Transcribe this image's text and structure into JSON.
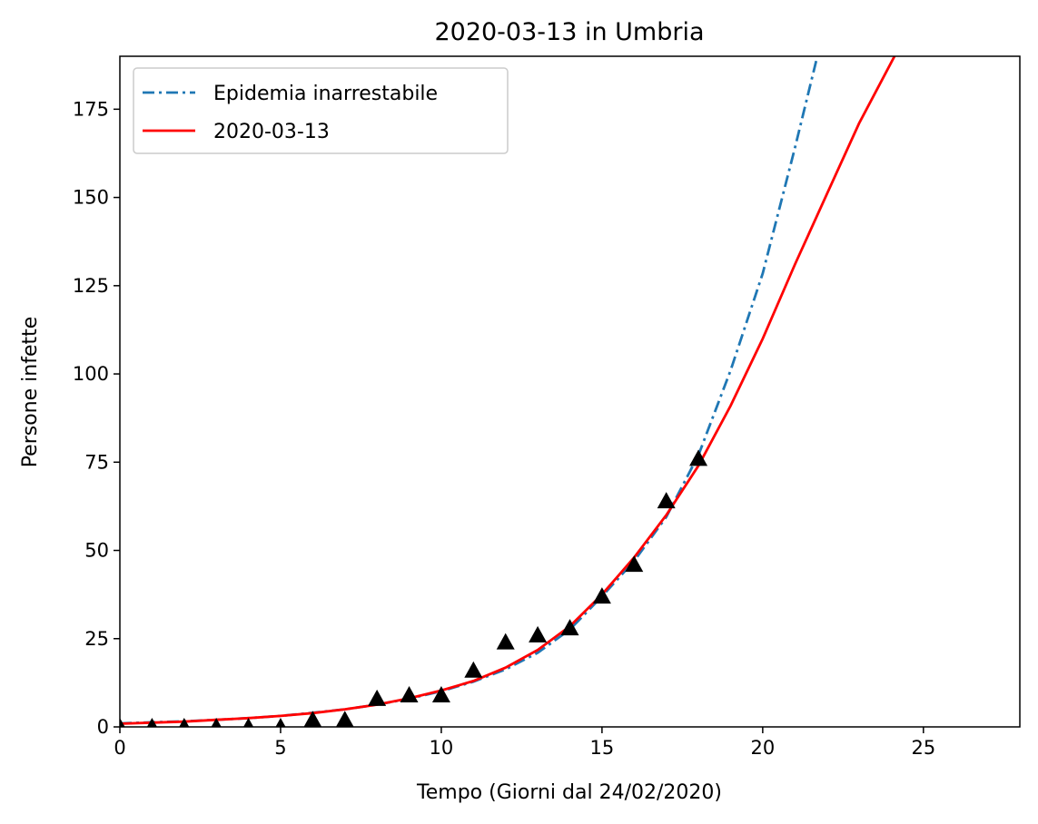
{
  "chart_data": {
    "type": "line",
    "title": "2020-03-13 in Umbria",
    "xlabel": "Tempo (Giorni dal 24/02/2020)",
    "ylabel": "Persone infette",
    "xlim": [
      0,
      28
    ],
    "ylim": [
      0,
      190
    ],
    "xticks": [
      "0",
      "5",
      "10",
      "15",
      "20",
      "25"
    ],
    "yticks": [
      "0",
      "25",
      "50",
      "75",
      "100",
      "125",
      "150",
      "175"
    ],
    "legend_position": "upper-left",
    "grid": false,
    "series": [
      {
        "name": "Epidemia inarrestabile",
        "style": "dashdot",
        "color": "#1f77b4",
        "x": [
          0,
          1,
          2,
          3,
          4,
          5,
          6,
          7,
          8,
          9,
          10,
          11,
          12,
          13,
          14,
          15,
          16,
          17,
          18,
          19,
          20,
          21,
          21.7
        ],
        "y": [
          1.0,
          1.3,
          1.6,
          2.0,
          2.5,
          3.1,
          4.0,
          5.0,
          6.3,
          8.0,
          10.1,
          12.8,
          16.3,
          21.0,
          27.6,
          37.0,
          47.0,
          59.5,
          77.0,
          101.0,
          128.5,
          164.0,
          190.0
        ]
      },
      {
        "name": "2020-03-13",
        "style": "solid",
        "color": "#ff0000",
        "x": [
          0,
          1,
          2,
          3,
          4,
          5,
          6,
          7,
          8,
          9,
          10,
          11,
          12,
          13,
          14,
          15,
          16,
          17,
          18,
          19,
          20,
          21,
          22,
          23,
          24.1
        ],
        "y": [
          0.9,
          1.2,
          1.5,
          2.0,
          2.5,
          3.1,
          3.9,
          5.0,
          6.3,
          8.1,
          10.3,
          13.0,
          16.8,
          21.8,
          28.5,
          37.5,
          48.0,
          60.0,
          74.0,
          91.0,
          110.0,
          131.0,
          151.0,
          171.0,
          190.0
        ]
      },
      {
        "name": "",
        "style": "markers",
        "marker": "triangle",
        "color": "#000000",
        "x": [
          0,
          1,
          2,
          3,
          4,
          5,
          6,
          7,
          8,
          9,
          10,
          11,
          12,
          13,
          14,
          15,
          16,
          17,
          18
        ],
        "y": [
          0,
          0,
          0,
          0,
          0,
          0,
          2,
          2,
          8,
          9,
          9,
          16,
          24,
          26,
          28,
          37,
          46,
          64,
          76
        ]
      }
    ]
  }
}
